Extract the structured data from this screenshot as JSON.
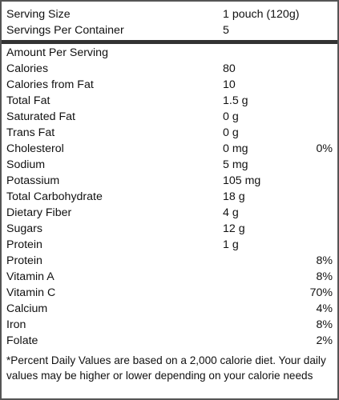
{
  "header": {
    "serving_size_label": "Serving Size",
    "serving_size_value": "1 pouch (120g)",
    "servings_per_container_label": "Servings Per Container",
    "servings_per_container_value": "5"
  },
  "amount_per_serving_label": "Amount Per Serving",
  "nutrients": [
    {
      "name": "Calories",
      "amount": "80",
      "dv": ""
    },
    {
      "name": "Calories from Fat",
      "amount": "10",
      "dv": ""
    },
    {
      "name": "Total Fat",
      "amount": "1.5 g",
      "dv": ""
    },
    {
      "name": "Saturated Fat",
      "amount": "0 g",
      "dv": ""
    },
    {
      "name": "Trans Fat",
      "amount": "0 g",
      "dv": ""
    },
    {
      "name": "Cholesterol",
      "amount": "0 mg",
      "dv": "0%"
    },
    {
      "name": "Sodium",
      "amount": "5 mg",
      "dv": ""
    },
    {
      "name": "Potassium",
      "amount": "105 mg",
      "dv": ""
    },
    {
      "name": "Total Carbohydrate",
      "amount": "18 g",
      "dv": ""
    },
    {
      "name": "Dietary Fiber",
      "amount": "4 g",
      "dv": ""
    },
    {
      "name": "Sugars",
      "amount": "12 g",
      "dv": ""
    },
    {
      "name": "Protein",
      "amount": "1 g",
      "dv": ""
    }
  ],
  "vitamins": [
    {
      "name": "Protein",
      "dv": "8%"
    },
    {
      "name": "Vitamin A",
      "dv": "8%"
    },
    {
      "name": "Vitamin C",
      "dv": "70%"
    },
    {
      "name": "Calcium",
      "dv": "4%"
    },
    {
      "name": "Iron",
      "dv": "8%"
    },
    {
      "name": "Folate",
      "dv": "2%"
    }
  ],
  "footnote": "*Percent Daily Values are based on a 2,000 calorie diet. Your daily values may be higher or lower depending on your calorie needs"
}
